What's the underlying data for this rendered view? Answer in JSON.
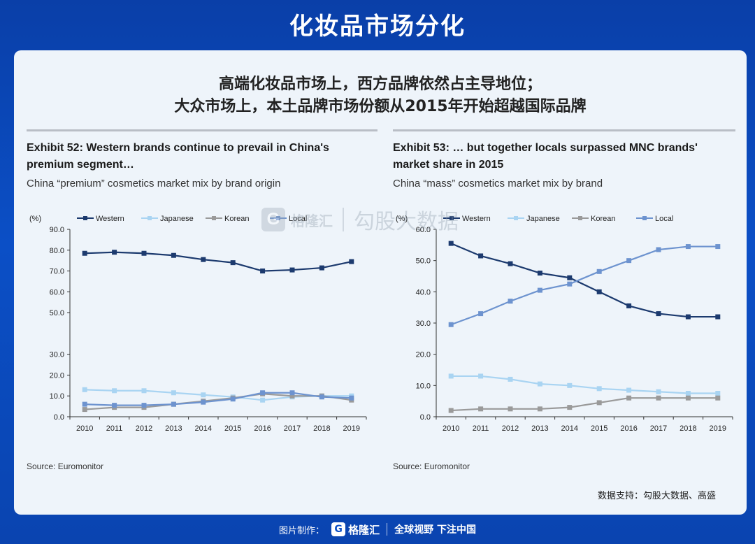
{
  "page": {
    "title": "化妆品市场分化",
    "headline_line1": "高端化妆品市场上，西方品牌依然占主导地位；",
    "headline_line2": "大众市场上，本土品牌市场份额从2015年开始超越国际品牌",
    "credit": "数据支持：勾股大数据、高盛",
    "footer_label": "图片制作：",
    "footer_brand": "格隆汇",
    "footer_slogan": "全球视野 下注中国",
    "watermark_brand": "格隆汇",
    "watermark_text": "勾股大数据"
  },
  "colors": {
    "Western": "#1c3a6e",
    "Japanese": "#a9d4f2",
    "Korean": "#9a9a9a",
    "Local": "#6d93cf"
  },
  "chart_data": [
    {
      "type": "line",
      "exhibit_title": "Exhibit 52: Western brands continue to prevail in China's premium segment…",
      "subtitle": "China “premium” cosmetics market mix by brand origin",
      "source": "Source: Euromonitor",
      "ylabel": "(%)",
      "ylim": [
        0,
        90
      ],
      "yticks": [
        "0.0",
        "10.0",
        "20.0",
        "30.0",
        "50.0",
        "60.0",
        "70.0",
        "80.0",
        "90.0"
      ],
      "ytick_values": [
        0,
        10,
        20,
        30,
        50,
        60,
        70,
        80,
        90
      ],
      "x": [
        "2010",
        "2011",
        "2012",
        "2013",
        "2014",
        "2015",
        "2016",
        "2017",
        "2018",
        "2019"
      ],
      "legend_position": "top",
      "series": [
        {
          "name": "Western",
          "values": [
            78.5,
            79,
            78.5,
            77.5,
            75.5,
            74,
            70,
            70.5,
            71.5,
            74.5
          ]
        },
        {
          "name": "Japanese",
          "values": [
            13,
            12.5,
            12.5,
            11.5,
            10.5,
            9.5,
            8,
            9.5,
            10,
            10
          ]
        },
        {
          "name": "Korean",
          "values": [
            3.5,
            4.5,
            4.5,
            6,
            7.5,
            9,
            11,
            10,
            10,
            8
          ]
        },
        {
          "name": "Local",
          "values": [
            6,
            5.5,
            5.5,
            6,
            7,
            8.5,
            11.5,
            11.5,
            9.5,
            9
          ]
        }
      ]
    },
    {
      "type": "line",
      "exhibit_title": "Exhibit 53: … but together locals surpassed MNC brands' market share in 2015",
      "subtitle": "China “mass” cosmetics market mix by brand",
      "source": "Source: Euromonitor",
      "ylabel": "(%)",
      "ylim": [
        0,
        60
      ],
      "yticks": [
        "0.0",
        "10.0",
        "20.0",
        "30.0",
        "40.0",
        "50.0",
        "60.0"
      ],
      "ytick_values": [
        0,
        10,
        20,
        30,
        40,
        50,
        60
      ],
      "x": [
        "2010",
        "2011",
        "2012",
        "2013",
        "2014",
        "2015",
        "2016",
        "2017",
        "2018",
        "2019"
      ],
      "legend_position": "top",
      "series": [
        {
          "name": "Western",
          "values": [
            55.5,
            51.5,
            49,
            46,
            44.5,
            40,
            35.5,
            33,
            32,
            32
          ]
        },
        {
          "name": "Japanese",
          "values": [
            13,
            13,
            12,
            10.5,
            10,
            9,
            8.5,
            8,
            7.5,
            7.5
          ]
        },
        {
          "name": "Korean",
          "values": [
            2,
            2.5,
            2.5,
            2.5,
            3,
            4.5,
            6,
            6,
            6,
            6
          ]
        },
        {
          "name": "Local",
          "values": [
            29.5,
            33,
            37,
            40.5,
            42.5,
            46.5,
            50,
            53.5,
            54.5,
            54.5
          ]
        }
      ]
    }
  ]
}
